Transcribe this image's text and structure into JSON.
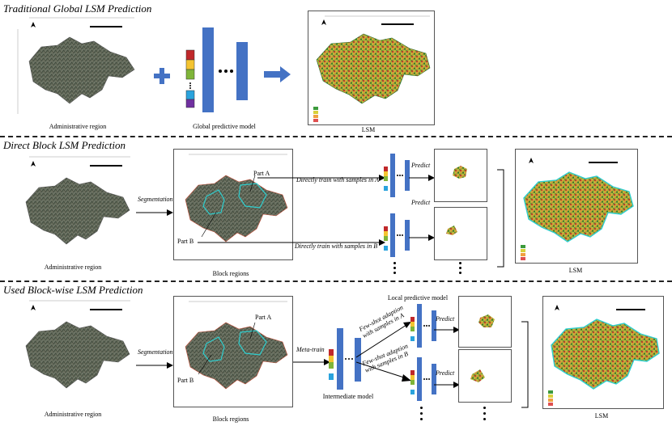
{
  "sections": {
    "traditional": {
      "title": "Traditional Global LSM Prediction",
      "admin_caption": "Administrative region",
      "model_caption": "Global predictive model",
      "lsm_caption": "LSM"
    },
    "direct": {
      "title": "Direct Block LSM Prediction",
      "admin_caption": "Administrative region",
      "segmentation_label": "Segmentation",
      "block_caption": "Block regions",
      "part_a": "Part A",
      "part_b": "Part B",
      "train_a": "Directly train with samples in A",
      "train_b": "Directly train with samples in B",
      "predict": "Predict",
      "lsm_caption": "LSM"
    },
    "blockwise": {
      "title": "Used Block-wise LSM Prediction",
      "admin_caption": "Administrative region",
      "segmentation_label": "Segmentation",
      "block_caption": "Block regions",
      "part_a": "Part A",
      "part_b": "Part B",
      "meta_train": "Meta-train",
      "intermediate_caption": "Intermediate model",
      "local_caption": "Local predictive model",
      "fewshot_a_line1": "Few-shot adaption",
      "fewshot_a_line2": "with samples in A",
      "fewshot_b_line1": "Few-shot adaption",
      "fewshot_b_line2": "with samples in B",
      "predict": "Predict",
      "lsm_caption": "LSM"
    }
  },
  "colors": {
    "model_blue": "#4472c4",
    "arrow_blue": "#4472c4",
    "block_outline": "#2ecfcf",
    "feature_stack": [
      "#c0282a",
      "#f4c431",
      "#7fb539",
      "#2aa3dd",
      "#7030a0"
    ]
  },
  "icons": [
    "north-arrow-icon",
    "plus-icon",
    "right-arrow-icon",
    "ellipsis-icon",
    "bracket-icon"
  ]
}
